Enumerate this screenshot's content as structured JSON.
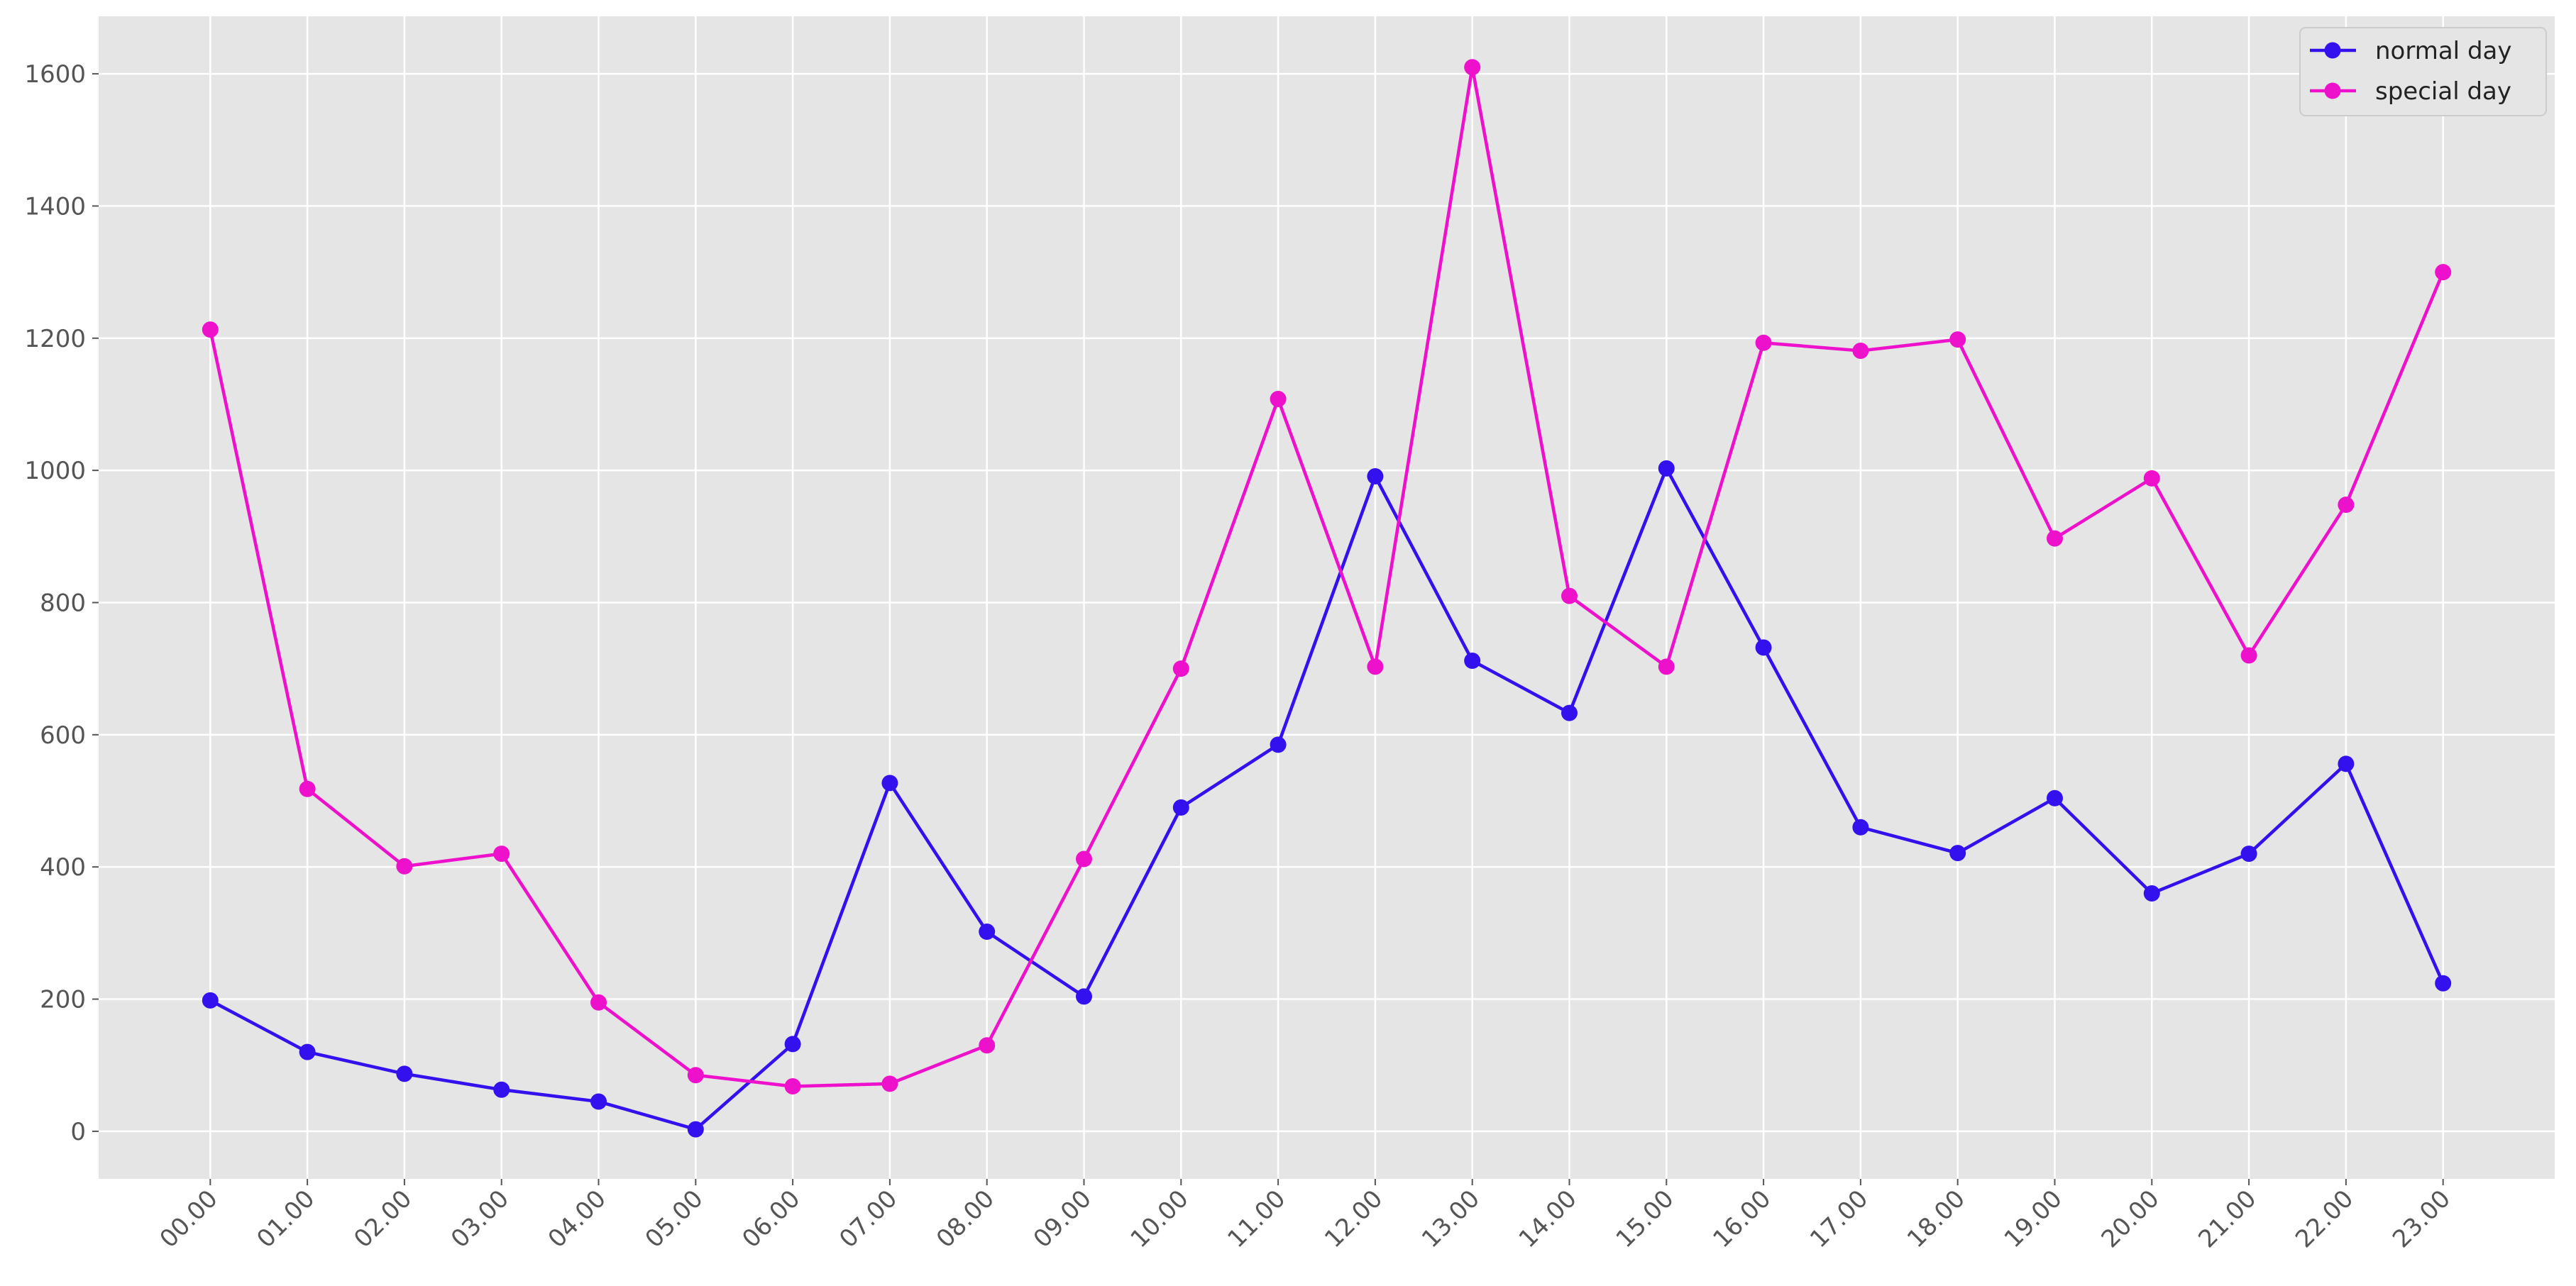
{
  "chart_data": {
    "type": "line",
    "categories": [
      "00.00",
      "01.00",
      "02.00",
      "03.00",
      "04.00",
      "05.00",
      "06.00",
      "07.00",
      "08.00",
      "09.00",
      "10.00",
      "11.00",
      "12.00",
      "13.00",
      "14.00",
      "15.00",
      "16.00",
      "17.00",
      "18.00",
      "19.00",
      "20.00",
      "21.00",
      "22.00",
      "23.00"
    ],
    "series": [
      {
        "name": "normal day",
        "color": "#3311ee",
        "values": [
          198,
          120,
          87,
          63,
          45,
          3,
          132,
          527,
          302,
          204,
          490,
          585,
          991,
          712,
          633,
          1003,
          732,
          460,
          421,
          504,
          360,
          420,
          556,
          224
        ]
      },
      {
        "name": "special day",
        "color": "#ee11cc",
        "values": [
          1213,
          518,
          401,
          420,
          195,
          85,
          68,
          72,
          130,
          412,
          700,
          1108,
          703,
          1610,
          810,
          703,
          1193,
          1181,
          1198,
          897,
          988,
          720,
          948,
          1300
        ]
      }
    ],
    "ylim": [
      -72,
      1687
    ],
    "yticks": [
      0,
      200,
      400,
      600,
      800,
      1000,
      1200,
      1400,
      1600
    ],
    "grid": true,
    "legend": "upper right"
  }
}
